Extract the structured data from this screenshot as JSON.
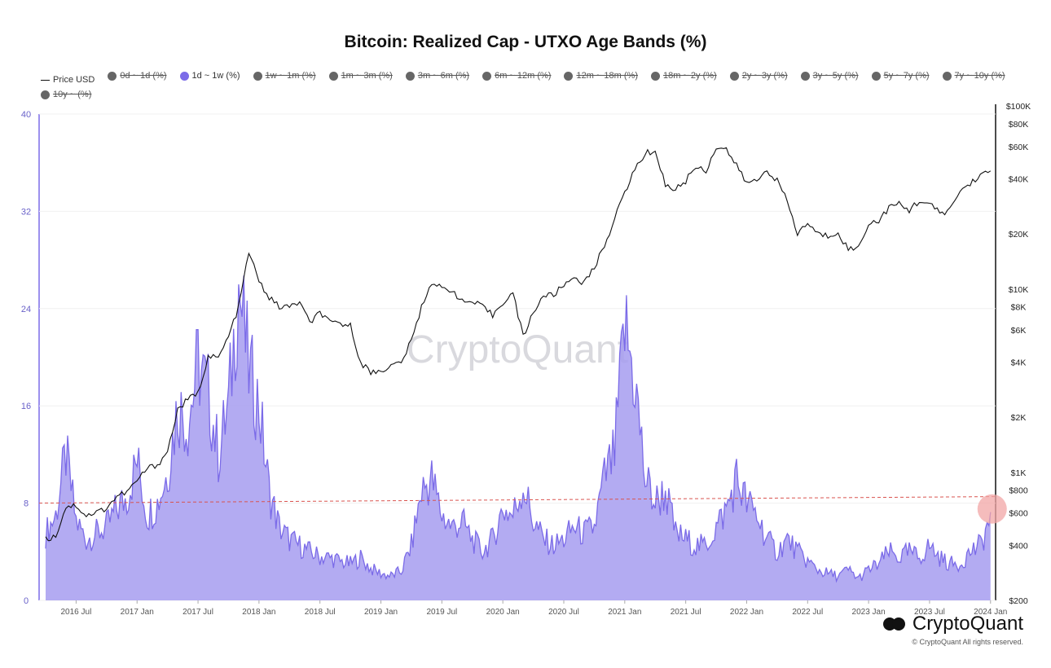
{
  "title": "Bitcoin: Realized Cap - UTXO Age Bands (%)",
  "legend": [
    {
      "label": "Price USD",
      "type": "line",
      "active": true
    },
    {
      "label": "0d ~ 1d (%)",
      "type": "dot",
      "active": false
    },
    {
      "label": "1d ~ 1w (%)",
      "type": "dot",
      "active": true
    },
    {
      "label": "1w ~ 1m (%)",
      "type": "dot",
      "active": false
    },
    {
      "label": "1m ~ 3m (%)",
      "type": "dot",
      "active": false
    },
    {
      "label": "3m ~ 6m (%)",
      "type": "dot",
      "active": false
    },
    {
      "label": "6m ~ 12m (%)",
      "type": "dot",
      "active": false
    },
    {
      "label": "12m ~ 18m (%)",
      "type": "dot",
      "active": false
    },
    {
      "label": "18m ~ 2y (%)",
      "type": "dot",
      "active": false
    },
    {
      "label": "2y ~ 3y (%)",
      "type": "dot",
      "active": false
    },
    {
      "label": "3y ~ 5y (%)",
      "type": "dot",
      "active": false
    },
    {
      "label": "5y ~ 7y (%)",
      "type": "dot",
      "active": false
    },
    {
      "label": "7y ~ 10y (%)",
      "type": "dot",
      "active": false
    },
    {
      "label": "10y ~ (%)",
      "type": "dot",
      "active": false
    }
  ],
  "watermark": "CryptoQuant",
  "brand": "CryptoQuant",
  "copyright": "© CryptoQuant All rights reserved.",
  "colors": {
    "band": "#7b6be8",
    "band_fill": "#a69cf0",
    "price": "#111111",
    "ref_line": "#d9534f",
    "highlight": "#f2a6a6"
  },
  "chart_data": {
    "type": "area",
    "x_ticks": [
      "2016 Jul",
      "2017 Jan",
      "2017 Jul",
      "2018 Jan",
      "2018 Jul",
      "2019 Jan",
      "2019 Jul",
      "2020 Jan",
      "2020 Jul",
      "2021 Jan",
      "2021 Jul",
      "2022 Jan",
      "2022 Jul",
      "2023 Jan",
      "2023 Jul",
      "2024 Jan"
    ],
    "y_left_ticks": [
      "0",
      "8",
      "16",
      "24",
      "32",
      "40"
    ],
    "y_left_range": [
      0,
      40
    ],
    "y_right_ticks": [
      "$200",
      "$400",
      "$600",
      "$800",
      "$1K",
      "$2K",
      "$4K",
      "$6K",
      "$8K",
      "$10K",
      "$20K",
      "$40K",
      "$60K",
      "$80K",
      "$100K"
    ],
    "y_right_scale": "log",
    "y_right_range": [
      200,
      100000
    ],
    "reference_line": 8,
    "series": [
      {
        "name": "1d ~ 1w (%)",
        "axis": "left",
        "x": [
          "2016-04",
          "2016-05",
          "2016-06",
          "2016-07",
          "2016-08",
          "2016-09",
          "2016-10",
          "2016-11",
          "2016-12",
          "2017-01",
          "2017-02",
          "2017-03",
          "2017-04",
          "2017-05",
          "2017-06",
          "2017-07",
          "2017-08",
          "2017-09",
          "2017-10",
          "2017-11",
          "2017-12",
          "2018-01",
          "2018-02",
          "2018-03",
          "2018-04",
          "2018-05",
          "2018-06",
          "2018-07",
          "2018-08",
          "2018-09",
          "2018-10",
          "2018-11",
          "2018-12",
          "2019-01",
          "2019-02",
          "2019-03",
          "2019-04",
          "2019-05",
          "2019-06",
          "2019-07",
          "2019-08",
          "2019-09",
          "2019-10",
          "2019-11",
          "2019-12",
          "2020-01",
          "2020-02",
          "2020-03",
          "2020-04",
          "2020-05",
          "2020-06",
          "2020-07",
          "2020-08",
          "2020-09",
          "2020-10",
          "2020-11",
          "2020-12",
          "2021-01",
          "2021-02",
          "2021-03",
          "2021-04",
          "2021-05",
          "2021-06",
          "2021-07",
          "2021-08",
          "2021-09",
          "2021-10",
          "2021-11",
          "2021-12",
          "2022-01",
          "2022-02",
          "2022-03",
          "2022-04",
          "2022-05",
          "2022-06",
          "2022-07",
          "2022-08",
          "2022-09",
          "2022-10",
          "2022-11",
          "2022-12",
          "2023-01",
          "2023-02",
          "2023-03",
          "2023-04",
          "2023-05",
          "2023-06",
          "2023-07",
          "2023-08",
          "2023-09",
          "2023-10",
          "2023-11",
          "2023-12",
          "2024-01"
        ],
        "values": [
          5.5,
          7.0,
          12.0,
          6.5,
          5.0,
          5.5,
          6.0,
          7.5,
          8.5,
          11.5,
          7.0,
          8.0,
          10.5,
          16.0,
          14.5,
          19.5,
          17.0,
          12.0,
          16.0,
          26.0,
          19.0,
          16.0,
          9.0,
          6.0,
          5.0,
          4.5,
          4.0,
          3.6,
          3.5,
          3.2,
          3.0,
          3.5,
          2.6,
          2.2,
          2.0,
          2.4,
          4.5,
          9.0,
          10.0,
          7.0,
          6.0,
          6.5,
          5.0,
          4.0,
          5.0,
          7.5,
          7.0,
          9.5,
          6.5,
          5.0,
          4.5,
          5.0,
          6.0,
          5.5,
          6.0,
          10.0,
          12.0,
          22.5,
          18.0,
          10.0,
          8.0,
          9.0,
          5.5,
          5.0,
          4.5,
          4.5,
          6.0,
          7.5,
          10.0,
          8.0,
          7.0,
          5.0,
          4.0,
          5.0,
          4.0,
          3.2,
          2.5,
          2.2,
          2.0,
          2.5,
          1.8,
          2.5,
          3.0,
          4.0,
          3.5,
          4.0,
          3.5,
          4.5,
          3.5,
          3.0,
          3.0,
          4.0,
          4.5,
          6.8
        ]
      },
      {
        "name": "Price USD",
        "axis": "right",
        "x": [
          "2016-04",
          "2016-05",
          "2016-06",
          "2016-07",
          "2016-08",
          "2016-09",
          "2016-10",
          "2016-11",
          "2016-12",
          "2017-01",
          "2017-02",
          "2017-03",
          "2017-04",
          "2017-05",
          "2017-06",
          "2017-07",
          "2017-08",
          "2017-09",
          "2017-10",
          "2017-11",
          "2017-12",
          "2018-01",
          "2018-02",
          "2018-03",
          "2018-04",
          "2018-05",
          "2018-06",
          "2018-07",
          "2018-08",
          "2018-09",
          "2018-10",
          "2018-11",
          "2018-12",
          "2019-01",
          "2019-02",
          "2019-03",
          "2019-04",
          "2019-05",
          "2019-06",
          "2019-07",
          "2019-08",
          "2019-09",
          "2019-10",
          "2019-11",
          "2019-12",
          "2020-01",
          "2020-02",
          "2020-03",
          "2020-04",
          "2020-05",
          "2020-06",
          "2020-07",
          "2020-08",
          "2020-09",
          "2020-10",
          "2020-11",
          "2020-12",
          "2021-01",
          "2021-02",
          "2021-03",
          "2021-04",
          "2021-05",
          "2021-06",
          "2021-07",
          "2021-08",
          "2021-09",
          "2021-10",
          "2021-11",
          "2021-12",
          "2022-01",
          "2022-02",
          "2022-03",
          "2022-04",
          "2022-05",
          "2022-06",
          "2022-07",
          "2022-08",
          "2022-09",
          "2022-10",
          "2022-11",
          "2022-12",
          "2023-01",
          "2023-02",
          "2023-03",
          "2023-04",
          "2023-05",
          "2023-06",
          "2023-07",
          "2023-08",
          "2023-09",
          "2023-10",
          "2023-11",
          "2023-12",
          "2024-01"
        ],
        "values": [
          430,
          450,
          650,
          660,
          580,
          605,
          640,
          740,
          780,
          900,
          1050,
          1100,
          1300,
          2200,
          2500,
          2700,
          4300,
          4200,
          5500,
          8000,
          16000,
          11000,
          9000,
          8000,
          8000,
          8500,
          6500,
          7500,
          6500,
          6500,
          6300,
          4000,
          3500,
          3600,
          3800,
          4000,
          5200,
          8000,
          11000,
          10000,
          10000,
          8500,
          8500,
          8000,
          7200,
          8500,
          9500,
          5500,
          7500,
          9200,
          9300,
          10500,
          11700,
          10800,
          13000,
          17500,
          24000,
          34000,
          45000,
          55000,
          57000,
          37000,
          35000,
          39000,
          47000,
          44000,
          60000,
          58000,
          47000,
          38000,
          39000,
          45000,
          39000,
          30000,
          20000,
          23000,
          20000,
          19500,
          20500,
          16500,
          16800,
          23000,
          23500,
          28000,
          29000,
          27000,
          30500,
          29000,
          26000,
          27000,
          34500,
          37500,
          42500,
          43000
        ]
      }
    ]
  }
}
